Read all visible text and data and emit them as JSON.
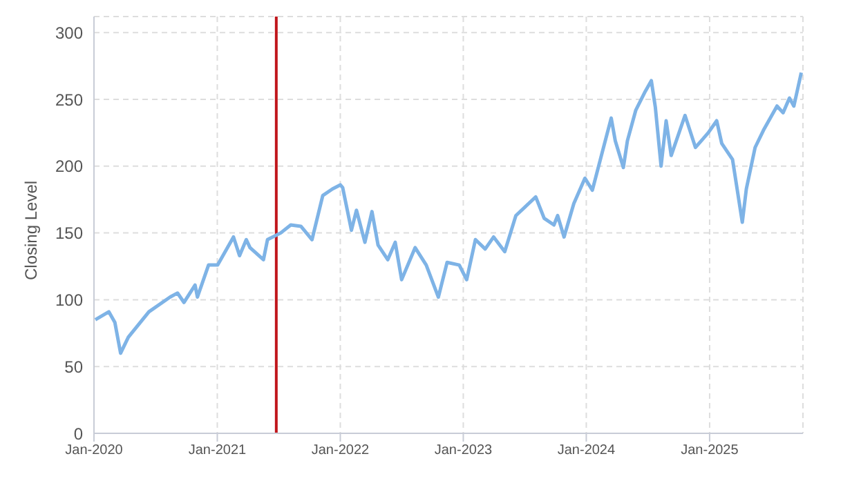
{
  "chart_data": {
    "type": "line",
    "ylabel": "Closing Level",
    "x": [
      "2020-01-05",
      "2020-02-14",
      "2020-03-03",
      "2020-03-20",
      "2020-04-12",
      "2020-06-12",
      "2020-08-14",
      "2020-09-05",
      "2020-09-24",
      "2020-10-27",
      "2020-11-03",
      "2020-12-06",
      "2021-01-02",
      "2021-02-18",
      "2021-03-08",
      "2021-03-28",
      "2021-04-08",
      "2021-05-18",
      "2021-05-30",
      "2021-07-08",
      "2021-08-07",
      "2021-09-06",
      "2021-10-09",
      "2021-11-10",
      "2021-12-09",
      "2022-01-01",
      "2022-01-08",
      "2022-02-03",
      "2022-02-18",
      "2022-03-15",
      "2022-04-05",
      "2022-04-23",
      "2022-05-22",
      "2022-06-13",
      "2022-07-02",
      "2022-08-11",
      "2022-09-13",
      "2022-10-19",
      "2022-11-14",
      "2022-12-20",
      "2023-01-11",
      "2023-02-06",
      "2023-03-07",
      "2023-04-01",
      "2023-05-04",
      "2023-06-06",
      "2023-08-04",
      "2023-08-29",
      "2023-09-27",
      "2023-10-08",
      "2023-10-27",
      "2023-11-25",
      "2023-12-28",
      "2024-01-19",
      "2024-02-17",
      "2024-03-15",
      "2024-03-27",
      "2024-04-20",
      "2024-05-02",
      "2024-05-27",
      "2024-06-24",
      "2024-07-12",
      "2024-07-24",
      "2024-08-10",
      "2024-08-25",
      "2024-09-09",
      "2024-10-20",
      "2024-11-20",
      "2024-12-28",
      "2025-01-22",
      "2025-02-06",
      "2025-03-10",
      "2025-04-08",
      "2025-04-20",
      "2025-05-16",
      "2025-06-10",
      "2025-07-20",
      "2025-08-07",
      "2025-08-26",
      "2025-09-08",
      "2025-09-30"
    ],
    "series": [
      {
        "color": "#7eb3e6",
        "values": [
          85,
          91,
          83,
          60,
          72,
          91,
          102,
          105,
          98,
          111,
          102,
          126,
          126,
          147,
          133,
          145,
          139,
          130,
          145,
          150,
          156,
          155,
          145,
          178,
          183,
          186,
          184,
          152,
          167,
          143,
          166,
          141,
          130,
          143,
          115,
          139,
          126,
          102,
          128,
          126,
          115,
          145,
          138,
          147,
          136,
          163,
          177,
          161,
          156,
          163,
          147,
          172,
          191,
          182,
          210,
          236,
          219,
          199,
          219,
          242,
          256,
          264,
          244,
          200,
          234,
          208,
          238,
          214,
          225,
          234,
          217,
          205,
          158,
          183,
          214,
          227,
          245,
          240,
          251,
          245,
          270
        ]
      }
    ],
    "xlim": [
      "2020-01-01",
      "2025-10-05"
    ],
    "xticks": [
      {
        "value": "2020-01-01",
        "label": "Jan-2020"
      },
      {
        "value": "2021-01-01",
        "label": "Jan-2021"
      },
      {
        "value": "2022-01-01",
        "label": "Jan-2022"
      },
      {
        "value": "2023-01-01",
        "label": "Jan-2023"
      },
      {
        "value": "2024-01-01",
        "label": "Jan-2024"
      },
      {
        "value": "2025-01-01",
        "label": "Jan-2025"
      }
    ],
    "ylim": [
      0,
      312
    ],
    "yticks": [
      0,
      50,
      100,
      150,
      200,
      250,
      300
    ],
    "ref_lines": [
      {
        "axis": "x",
        "value": "2021-06-25",
        "color": "#c0161b"
      }
    ],
    "grid": true,
    "legend": false,
    "marker": "none",
    "line_style": "solid"
  }
}
